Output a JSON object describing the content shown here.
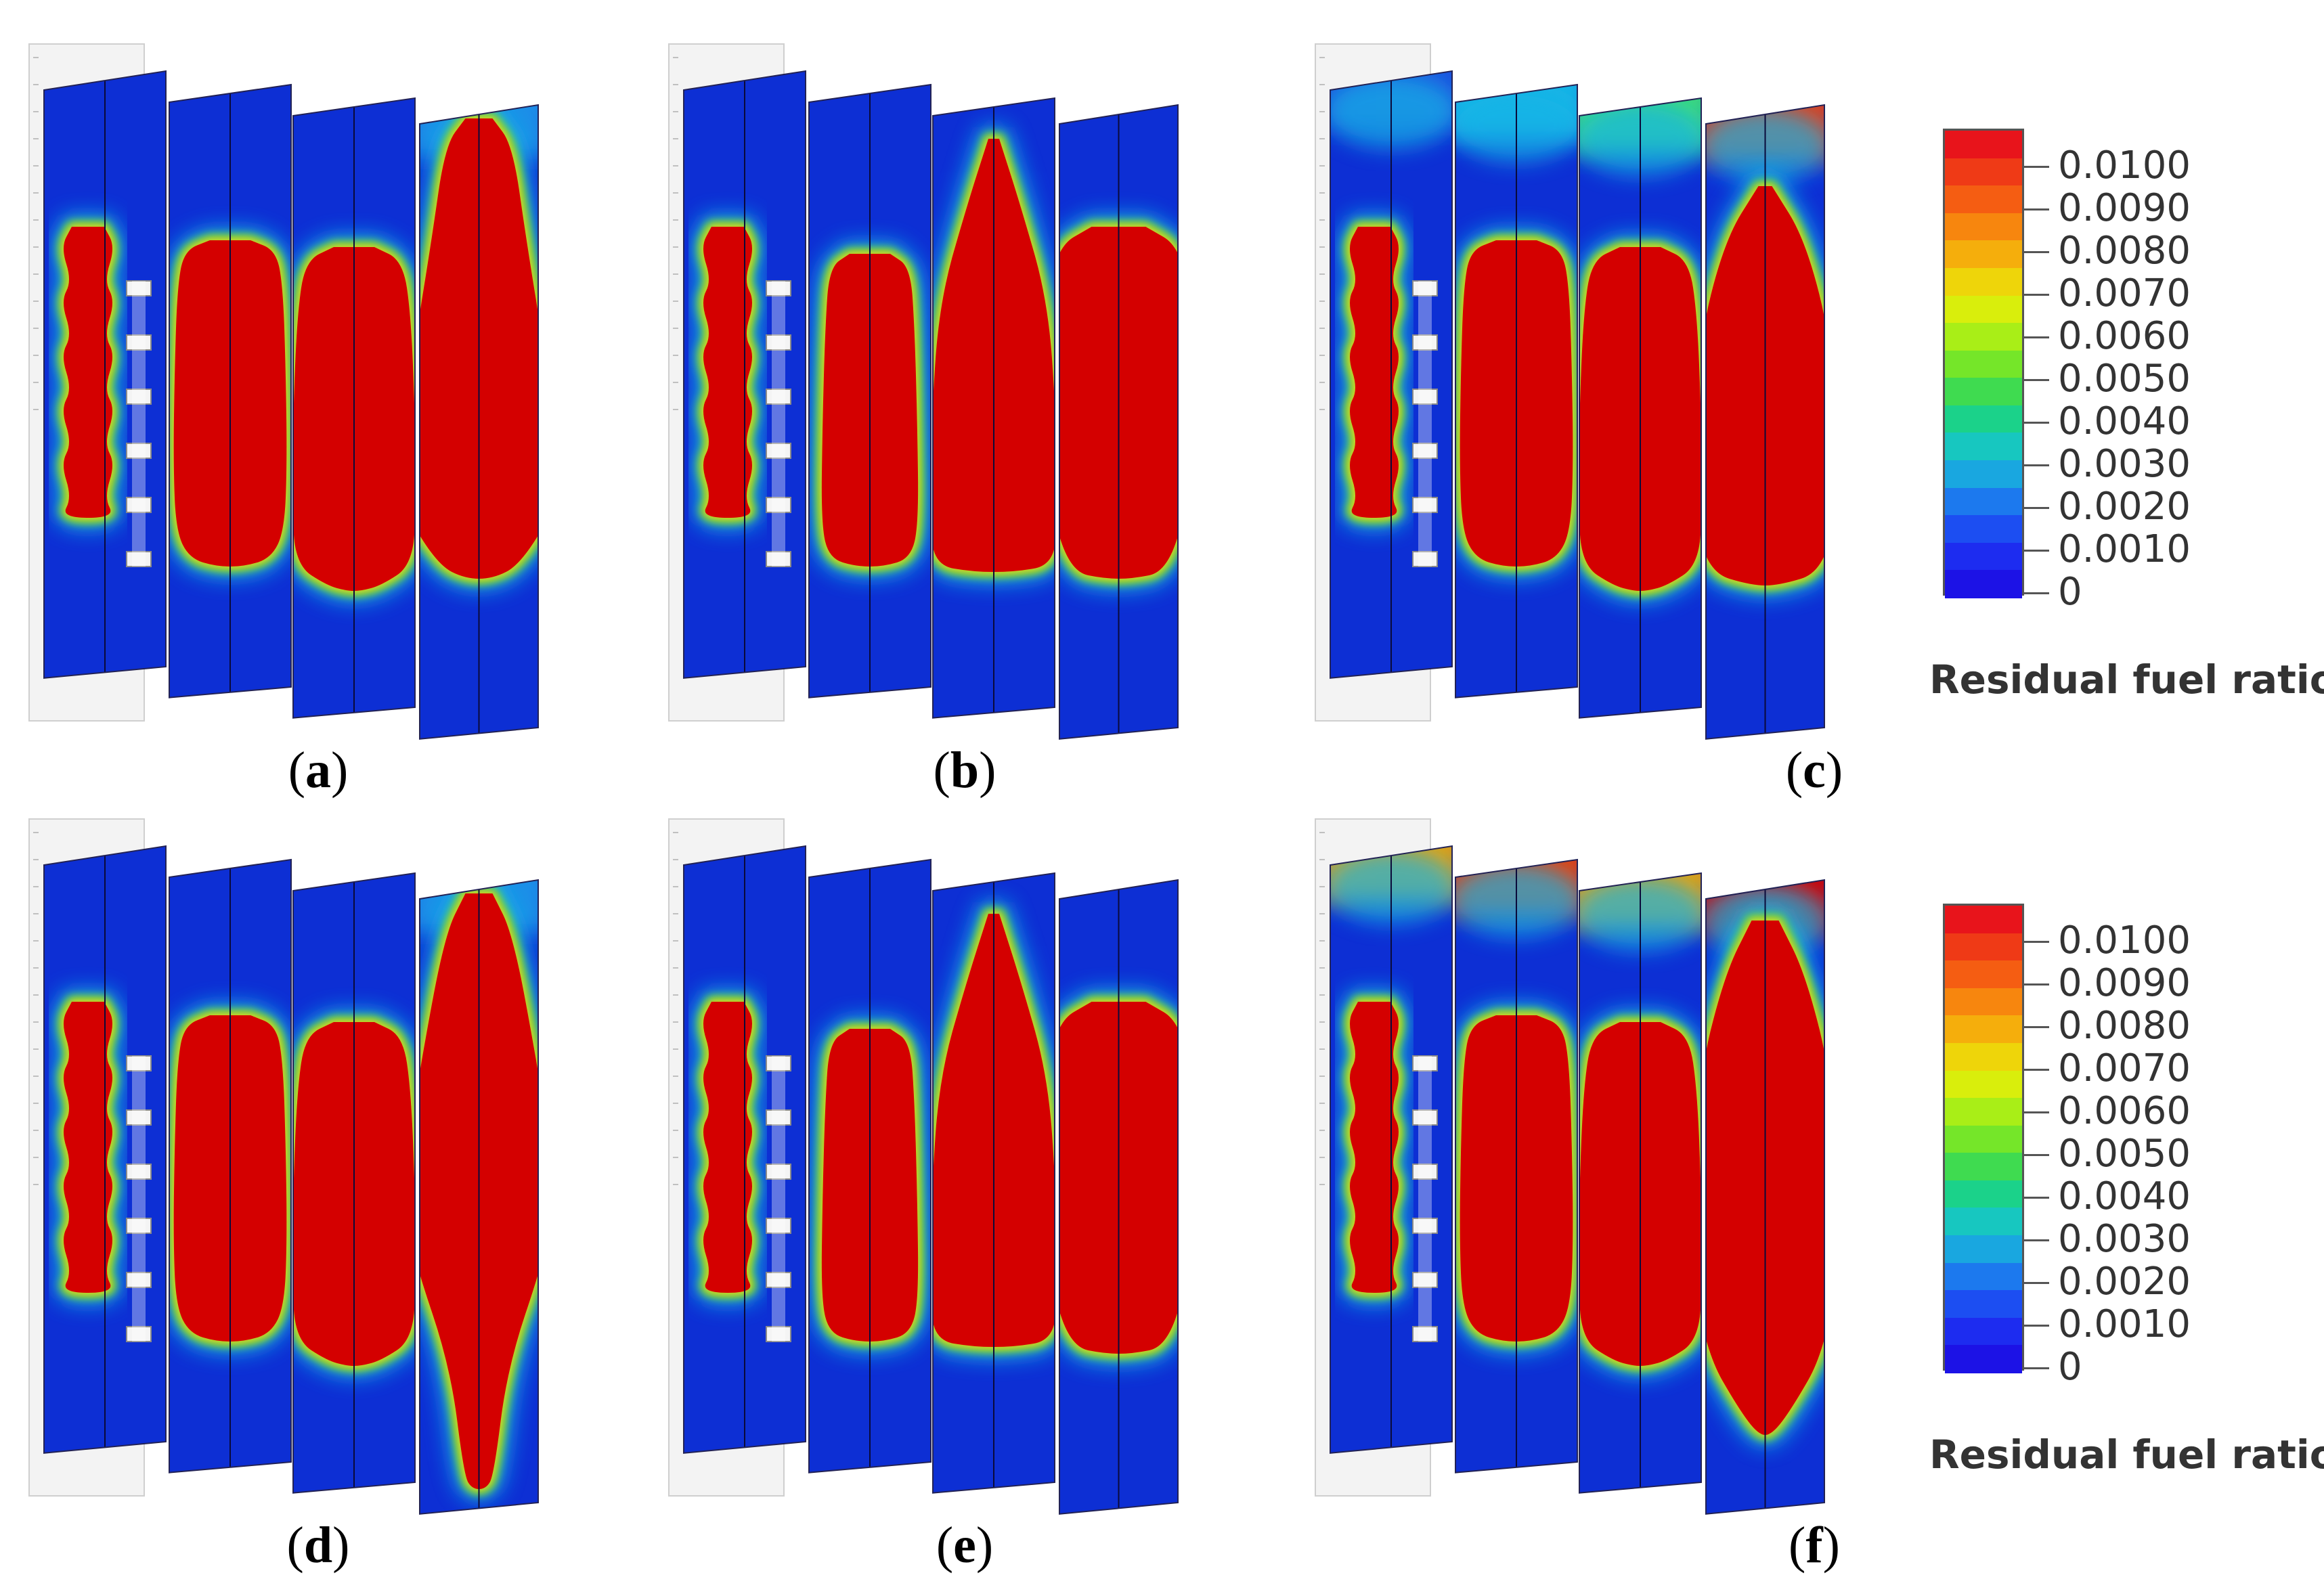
{
  "panels": [
    {
      "id": "a",
      "label": "a",
      "variant": "a"
    },
    {
      "id": "b",
      "label": "b",
      "variant": "b"
    },
    {
      "id": "c",
      "label": "c",
      "variant": "c"
    },
    {
      "id": "d",
      "label": "d",
      "variant": "d"
    },
    {
      "id": "e",
      "label": "e",
      "variant": "e"
    },
    {
      "id": "f",
      "label": "f",
      "variant": "f"
    }
  ],
  "legend": {
    "title": "Residual fuel ratio",
    "ticks": [
      "0.0100",
      "0.0090",
      "0.0080",
      "0.0070",
      "0.0060",
      "0.0050",
      "0.0040",
      "0.0030",
      "0.0020",
      "0.0010",
      "0"
    ],
    "colors": [
      "#e8141b",
      "#ef3a16",
      "#f55d12",
      "#f7860e",
      "#f5ae0c",
      "#eed50a",
      "#d9ee0c",
      "#a9ee17",
      "#75e629",
      "#3fdb50",
      "#1bd28a",
      "#17c7c0",
      "#19a7e0",
      "#1c79ee",
      "#1c4ef2",
      "#1d2cf0",
      "#1c12e6"
    ],
    "field_colors": {
      "max": "#d40000",
      "min": "#0d2fd4"
    }
  }
}
